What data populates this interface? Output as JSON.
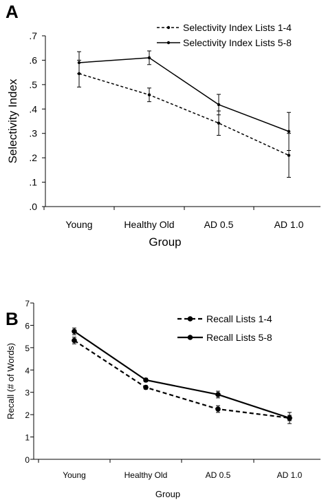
{
  "chart_data": [
    {
      "panel_label": "A",
      "type": "line",
      "xlabel": "Group",
      "ylabel": "Selectivity Index",
      "categories": [
        "Young",
        "Healthy Old",
        "AD 0.5",
        "AD 1.0"
      ],
      "ylim": [
        0,
        0.7
      ],
      "yticks": [
        ".0",
        ".1",
        ".2",
        ".3",
        ".4",
        ".5",
        ".6",
        ".7"
      ],
      "legend_position": "top-right",
      "series": [
        {
          "name": "Selectivity Index Lists 1-4",
          "style": "dashed",
          "values": [
            0.545,
            0.458,
            0.342,
            0.21
          ],
          "errors": [
            0.055,
            0.028,
            0.05,
            0.09
          ]
        },
        {
          "name": "Selectivity Index Lists 5-8",
          "style": "solid",
          "values": [
            0.59,
            0.61,
            0.418,
            0.308
          ],
          "errors": [
            0.045,
            0.028,
            0.042,
            0.078
          ]
        }
      ]
    },
    {
      "panel_label": "B",
      "type": "line",
      "xlabel": "Group",
      "ylabel": "Recall (# of Words)",
      "categories": [
        "Young",
        "Healthy Old",
        "AD 0.5",
        "AD 1.0"
      ],
      "ylim": [
        0,
        7
      ],
      "yticks": [
        "0",
        "1",
        "2",
        "3",
        "4",
        "5",
        "6",
        "7"
      ],
      "legend_position": "top-right",
      "series": [
        {
          "name": "Recall Lists 1-4",
          "style": "dashed",
          "values": [
            5.32,
            3.22,
            2.25,
            1.85
          ],
          "errors": [
            0.15,
            0.08,
            0.15,
            0.12
          ]
        },
        {
          "name": "Recall Lists 5-8",
          "style": "solid",
          "values": [
            5.73,
            3.55,
            2.9,
            1.85
          ],
          "errors": [
            0.15,
            0.08,
            0.15,
            0.25
          ]
        }
      ]
    }
  ]
}
